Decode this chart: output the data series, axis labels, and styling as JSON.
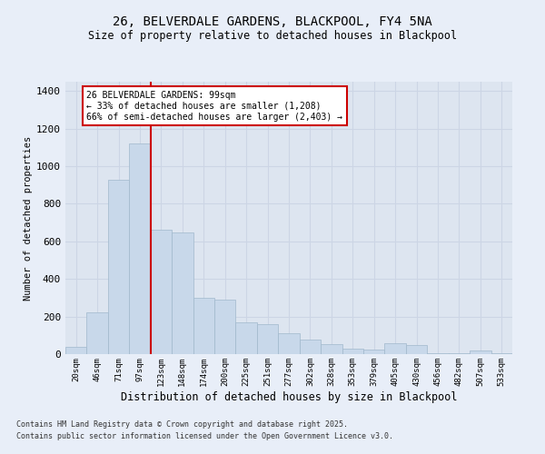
{
  "title": "26, BELVERDALE GARDENS, BLACKPOOL, FY4 5NA",
  "subtitle": "Size of property relative to detached houses in Blackpool",
  "xlabel": "Distribution of detached houses by size in Blackpool",
  "ylabel": "Number of detached properties",
  "footer_line1": "Contains HM Land Registry data © Crown copyright and database right 2025.",
  "footer_line2": "Contains public sector information licensed under the Open Government Licence v3.0.",
  "bar_color": "#c8d8ea",
  "bar_edge_color": "#a0b8cc",
  "vline_color": "#cc0000",
  "vline_position": 3.5,
  "annotation_text": "26 BELVERDALE GARDENS: 99sqm\n← 33% of detached houses are smaller (1,208)\n66% of semi-detached houses are larger (2,403) →",
  "annotation_box_color": "#cc0000",
  "annotation_fill": "#ffffff",
  "categories": [
    "20sqm",
    "46sqm",
    "71sqm",
    "97sqm",
    "123sqm",
    "148sqm",
    "174sqm",
    "200sqm",
    "225sqm",
    "251sqm",
    "277sqm",
    "302sqm",
    "328sqm",
    "353sqm",
    "379sqm",
    "405sqm",
    "430sqm",
    "456sqm",
    "482sqm",
    "507sqm",
    "533sqm"
  ],
  "values": [
    40,
    220,
    930,
    1120,
    660,
    650,
    300,
    290,
    170,
    160,
    110,
    75,
    55,
    30,
    25,
    60,
    50,
    5,
    5,
    20,
    5
  ],
  "ylim": [
    0,
    1450
  ],
  "yticks": [
    0,
    200,
    400,
    600,
    800,
    1000,
    1200,
    1400
  ],
  "grid_color": "#ccd5e5",
  "background_color": "#dde5f0",
  "fig_background": "#e8eef8"
}
